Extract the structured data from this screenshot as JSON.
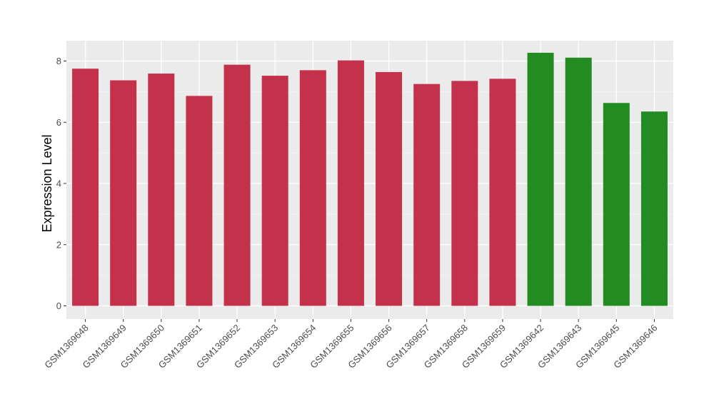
{
  "chart_data": {
    "type": "bar",
    "title": "",
    "xlabel": "",
    "ylabel": "Expression Level",
    "ylim": [
      0,
      8.7
    ],
    "yticks": [
      0,
      2,
      4,
      6,
      8
    ],
    "grid": true,
    "legend": "none",
    "categories": [
      "GSM1369648",
      "GSM1369649",
      "GSM1369650",
      "GSM1369651",
      "GSM1369652",
      "GSM1369653",
      "GSM1369654",
      "GSM1369655",
      "GSM1369656",
      "GSM1369657",
      "GSM1369658",
      "GSM1369659",
      "GSM1369642",
      "GSM1369643",
      "GSM1369645",
      "GSM1369646"
    ],
    "values": [
      7.75,
      7.37,
      7.59,
      6.86,
      7.88,
      7.52,
      7.7,
      8.02,
      7.64,
      7.25,
      7.35,
      7.42,
      8.27,
      8.11,
      6.63,
      6.35
    ],
    "groups": [
      "red",
      "red",
      "red",
      "red",
      "red",
      "red",
      "red",
      "red",
      "red",
      "red",
      "red",
      "red",
      "green",
      "green",
      "green",
      "green"
    ],
    "colors": {
      "red": "#C4314B",
      "green": "#228B22",
      "panel": "#EBEBEB",
      "grid_major": "#FFFFFF",
      "grid_minor": "#F5F5F5",
      "axis_text": "#4D4D4D",
      "title_text": "#000000"
    }
  }
}
